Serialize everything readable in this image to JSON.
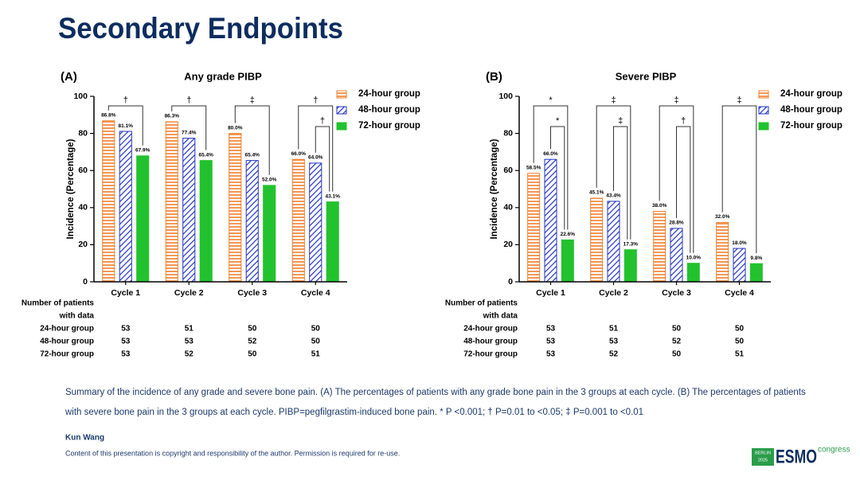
{
  "title": "Secondary Endpoints",
  "chart_data": [
    {
      "type": "bar",
      "panel": "(A)",
      "title": "Any grade PIBP",
      "y_label": "Incidence (Percentage)",
      "categories": [
        "Cycle 1",
        "Cycle 2",
        "Cycle 3",
        "Cycle 4"
      ],
      "series": [
        {
          "name": "24-hour group",
          "color": "#ef7f2d",
          "hatch": "horizontal",
          "values": [
            86.8,
            86.3,
            80.0,
            66.0
          ],
          "value_labels": [
            "86.8%",
            "86.3%",
            "80.0%",
            "66.0%"
          ]
        },
        {
          "name": "48-hour group",
          "color": "#2233c4",
          "hatch": "diagonal",
          "values": [
            81.1,
            77.4,
            65.4,
            64.0
          ],
          "value_labels": [
            "81.1%",
            "77.4%",
            "65.4%",
            "64.0%"
          ]
        },
        {
          "name": "72-hour group",
          "color": "#22c22e",
          "hatch": "solid",
          "values": [
            67.9,
            65.4,
            52.0,
            43.1
          ],
          "value_labels": [
            "67.9%",
            "65.4%",
            "52.0%",
            "43.1%"
          ]
        }
      ],
      "ylim": [
        0,
        100
      ],
      "yticks": [
        0,
        20,
        40,
        60,
        80,
        100
      ],
      "legend": "upper right",
      "annotations": [
        {
          "text": "†",
          "category": "Cycle 1",
          "from": "24-hour group",
          "to": "72-hour group"
        },
        {
          "text": "†",
          "category": "Cycle 2",
          "from": "24-hour group",
          "to": "72-hour group"
        },
        {
          "text": "‡",
          "category": "Cycle 3",
          "from": "24-hour group",
          "to": "72-hour group"
        },
        {
          "text": "†",
          "category": "Cycle 4",
          "from": "24-hour group",
          "to": "72-hour group"
        },
        {
          "text": "†",
          "category": "Cycle 4",
          "from": "48-hour group",
          "to": "72-hour group"
        }
      ]
    },
    {
      "type": "bar",
      "panel": "(B)",
      "title": "Severe PIBP",
      "y_label": "Incidence (Percentage)",
      "categories": [
        "Cycle 1",
        "Cycle 2",
        "Cycle 3",
        "Cycle 4"
      ],
      "series": [
        {
          "name": "24-hour group",
          "color": "#ef7f2d",
          "hatch": "horizontal",
          "values": [
            58.5,
            45.1,
            38.0,
            32.0
          ],
          "value_labels": [
            "58.5%",
            "45.1%",
            "38.0%",
            "32.0%"
          ]
        },
        {
          "name": "48-hour group",
          "color": "#2233c4",
          "hatch": "diagonal",
          "values": [
            66.0,
            43.4,
            28.8,
            18.0
          ],
          "value_labels": [
            "66.0%",
            "43.4%",
            "28.8%",
            "18.0%"
          ]
        },
        {
          "name": "72-hour group",
          "color": "#22c22e",
          "hatch": "solid",
          "values": [
            22.6,
            17.3,
            10.0,
            9.8
          ],
          "value_labels": [
            "22.6%",
            "17.3%",
            "10.0%",
            "9.8%"
          ]
        }
      ],
      "ylim": [
        0,
        100
      ],
      "yticks": [
        0,
        20,
        40,
        60,
        80,
        100
      ],
      "legend": "upper right",
      "annotations": [
        {
          "text": "*",
          "category": "Cycle 1",
          "from": "24-hour group",
          "to": "72-hour group"
        },
        {
          "text": "*",
          "category": "Cycle 1",
          "from": "48-hour group",
          "to": "72-hour group"
        },
        {
          "text": "‡",
          "category": "Cycle 2",
          "from": "24-hour group",
          "to": "72-hour group"
        },
        {
          "text": "‡",
          "category": "Cycle 2",
          "from": "48-hour group",
          "to": "72-hour group"
        },
        {
          "text": "‡",
          "category": "Cycle 3",
          "from": "24-hour group",
          "to": "72-hour group"
        },
        {
          "text": "†",
          "category": "Cycle 3",
          "from": "48-hour group",
          "to": "72-hour group"
        },
        {
          "text": "‡",
          "category": "Cycle 4",
          "from": "24-hour group",
          "to": "72-hour group"
        }
      ]
    }
  ],
  "tables": [
    {
      "header": [
        "Number of patients",
        "with data"
      ],
      "rows": [
        {
          "label": "24-hour group",
          "values": [
            53,
            51,
            50,
            50
          ]
        },
        {
          "label": "48-hour group",
          "values": [
            53,
            53,
            52,
            50
          ]
        },
        {
          "label": "72-hour group",
          "values": [
            53,
            52,
            50,
            51
          ]
        }
      ]
    },
    {
      "header": [
        "Number of patients",
        "with data"
      ],
      "rows": [
        {
          "label": "24-hour group",
          "values": [
            53,
            51,
            50,
            50
          ]
        },
        {
          "label": "48-hour group",
          "values": [
            53,
            53,
            52,
            50
          ]
        },
        {
          "label": "72-hour group",
          "values": [
            53,
            52,
            50,
            51
          ]
        }
      ]
    }
  ],
  "caption": [
    "Summary of the incidence of any grade and severe bone pain. (A) The percentages of patients with any grade bone pain in the 3 groups at each cycle. (B) The percentages of patients",
    "with severe bone pain in the 3 groups at each cycle. PIBP=pegfilgrastim-induced bone pain. * P <0.001; † P=0.01 to <0.05; ‡ P=0.001 to <0.01"
  ],
  "author": "Kun Wang",
  "copyright": "Content of this presentation is copyright and responsibility of the author. Permission is required for re-use.",
  "logo": {
    "city": "BERLIN",
    "year": "2025",
    "name": "ESMO",
    "suffix": "congress"
  }
}
